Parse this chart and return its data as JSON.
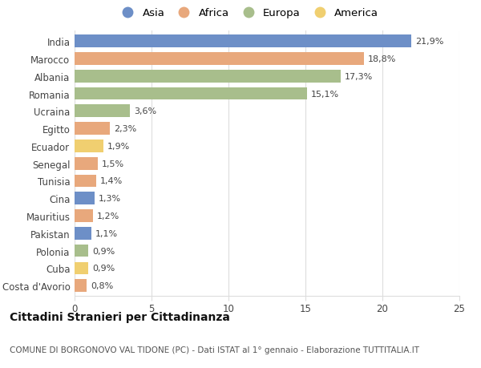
{
  "categories": [
    "India",
    "Marocco",
    "Albania",
    "Romania",
    "Ucraina",
    "Egitto",
    "Ecuador",
    "Senegal",
    "Tunisia",
    "Cina",
    "Mauritius",
    "Pakistan",
    "Polonia",
    "Cuba",
    "Costa d'Avorio"
  ],
  "values": [
    21.9,
    18.8,
    17.3,
    15.1,
    3.6,
    2.3,
    1.9,
    1.5,
    1.4,
    1.3,
    1.2,
    1.1,
    0.9,
    0.9,
    0.8
  ],
  "labels": [
    "21,9%",
    "18,8%",
    "17,3%",
    "15,1%",
    "3,6%",
    "2,3%",
    "1,9%",
    "1,5%",
    "1,4%",
    "1,3%",
    "1,2%",
    "1,1%",
    "0,9%",
    "0,9%",
    "0,8%"
  ],
  "regions": [
    "Asia",
    "Africa",
    "Europa",
    "Europa",
    "Europa",
    "Africa",
    "America",
    "Africa",
    "Africa",
    "Asia",
    "Africa",
    "Asia",
    "Europa",
    "America",
    "Africa"
  ],
  "region_colors": {
    "Asia": "#6d8fc7",
    "Africa": "#e8a87c",
    "Europa": "#a8be8c",
    "America": "#f0cf70"
  },
  "legend_order": [
    "Asia",
    "Africa",
    "Europa",
    "America"
  ],
  "title": "Cittadini Stranieri per Cittadinanza",
  "subtitle": "COMUNE DI BORGONOVO VAL TIDONE (PC) - Dati ISTAT al 1° gennaio - Elaborazione TUTTITALIA.IT",
  "xlim": [
    0,
    25
  ],
  "xticks": [
    0,
    5,
    10,
    15,
    20,
    25
  ],
  "background_color": "#ffffff",
  "grid_color": "#dddddd",
  "bar_height": 0.72,
  "title_fontsize": 10,
  "subtitle_fontsize": 7.5,
  "label_fontsize": 8,
  "tick_fontsize": 8.5,
  "legend_fontsize": 9.5
}
